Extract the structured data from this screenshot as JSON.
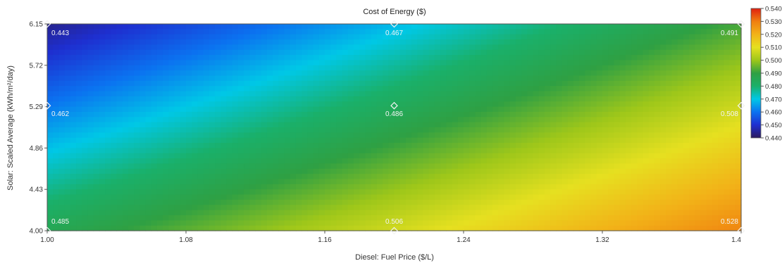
{
  "chart_data": {
    "type": "heatmap",
    "title": "Cost of Energy ($)",
    "xlabel": "Diesel: Fuel Price ($/L)",
    "ylabel": "Solar: Scaled Average (kWh/m²/day)",
    "xlim": [
      1.0,
      1.4
    ],
    "ylim": [
      4.0,
      6.15
    ],
    "x_ticks": [
      "1.00",
      "1.08",
      "1.16",
      "1.24",
      "1.32",
      "1.4"
    ],
    "y_ticks": [
      "4.00",
      "4.43",
      "4.86",
      "5.29",
      "5.72",
      "6.15"
    ],
    "x_tick_values": [
      1.0,
      1.08,
      1.16,
      1.24,
      1.32,
      1.4
    ],
    "y_tick_values": [
      4.0,
      4.43,
      4.86,
      5.29,
      5.72,
      6.15
    ],
    "points": [
      {
        "x": 1.0,
        "y": 6.15,
        "label": "0.443",
        "value": 0.443
      },
      {
        "x": 1.2,
        "y": 6.15,
        "label": "0.467",
        "value": 0.467
      },
      {
        "x": 1.4,
        "y": 6.15,
        "label": "0.491",
        "value": 0.491
      },
      {
        "x": 1.0,
        "y": 5.3,
        "label": "0.462",
        "value": 0.462
      },
      {
        "x": 1.2,
        "y": 5.3,
        "label": "0.486",
        "value": 0.486
      },
      {
        "x": 1.4,
        "y": 5.3,
        "label": "0.508",
        "value": 0.508
      },
      {
        "x": 1.0,
        "y": 4.0,
        "label": "0.485",
        "value": 0.485
      },
      {
        "x": 1.2,
        "y": 4.0,
        "label": "0.506",
        "value": 0.506
      },
      {
        "x": 1.4,
        "y": 4.0,
        "label": "0.528",
        "value": 0.528
      }
    ],
    "colorbar": {
      "min": 0.44,
      "max": 0.54,
      "ticks": [
        "0.540",
        "0.530",
        "0.520",
        "0.510",
        "0.500",
        "0.490",
        "0.480",
        "0.470",
        "0.460",
        "0.450",
        "0.440"
      ],
      "tick_values": [
        0.54,
        0.53,
        0.52,
        0.51,
        0.5,
        0.49,
        0.48,
        0.47,
        0.46,
        0.45,
        0.44
      ],
      "colors": [
        "#2c1a5e",
        "#1e2fd0",
        "#0b72f0",
        "#00c8e6",
        "#1ab06a",
        "#2fa043",
        "#9ec71a",
        "#e6e020",
        "#f2b218",
        "#f07f10",
        "#e02010"
      ]
    },
    "grid": false,
    "legend": "right"
  }
}
